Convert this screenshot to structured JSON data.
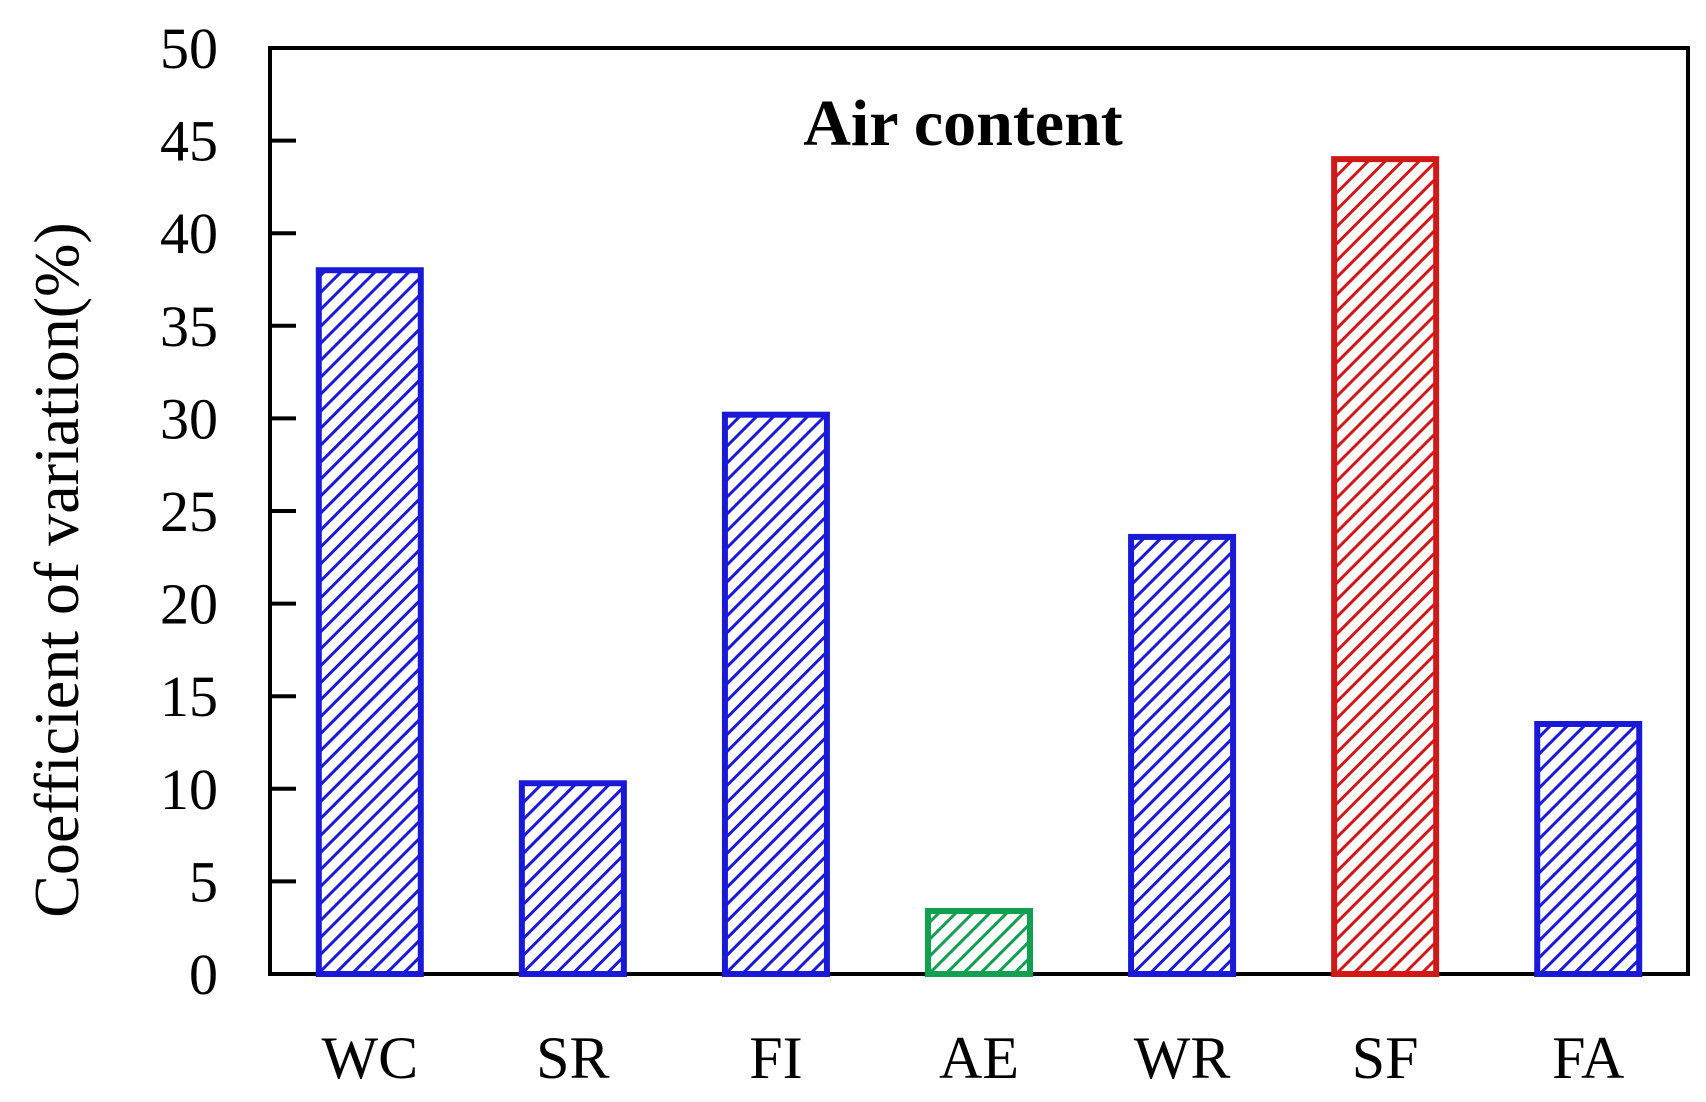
{
  "chart_data": {
    "type": "bar",
    "title": "Air content",
    "xlabel": "",
    "ylabel": "Coefficient of variation(%)",
    "ylim": [
      0,
      50
    ],
    "yticks": [
      0,
      5,
      10,
      15,
      20,
      25,
      30,
      35,
      40,
      45,
      50
    ],
    "categories": [
      "WC",
      "SR",
      "FI",
      "AE",
      "WR",
      "SF",
      "FA"
    ],
    "values": [
      38.0,
      10.3,
      30.2,
      3.4,
      23.6,
      44.0,
      13.5
    ],
    "colors": [
      "#1a1ad6",
      "#1a1ad6",
      "#1a1ad6",
      "#12a050",
      "#1a1ad6",
      "#d01818",
      "#1a1ad6"
    ],
    "grid": false,
    "legend": "none"
  }
}
